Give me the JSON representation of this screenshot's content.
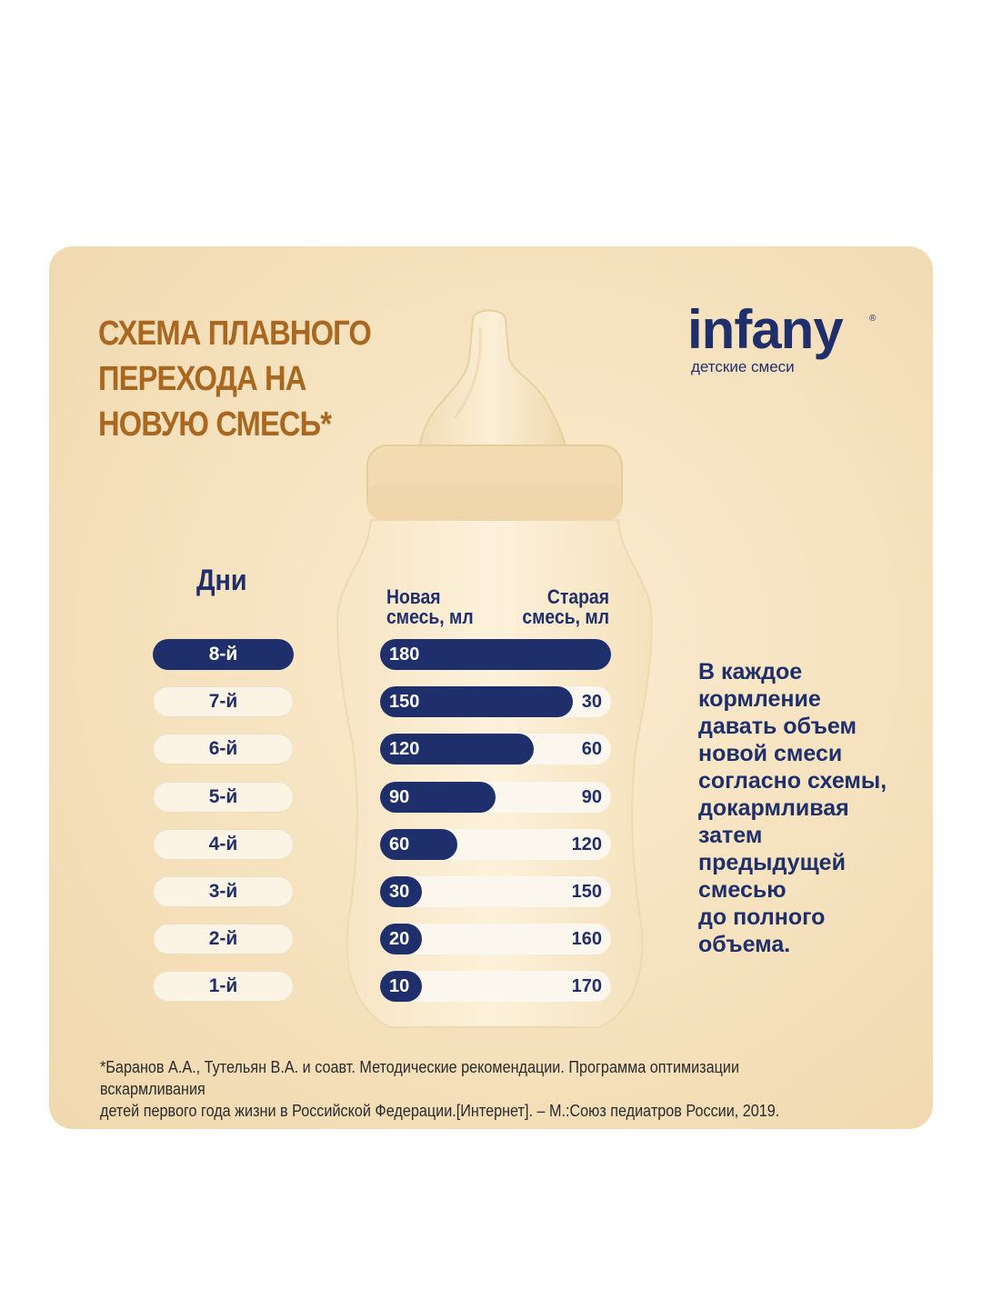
{
  "title": "СХЕМА ПЛАВНОГО\nПЕРЕХОДА НА\nНОВУЮ СМЕСЬ*",
  "brand": {
    "name": "infany",
    "registered": "®",
    "tagline": "детские смеси"
  },
  "days_title": "Дни",
  "columns": {
    "new": "Новая\nсмесь, мл",
    "old": "Старая\nсмесь, мл"
  },
  "advice": "В каждое\nкормление\nдавать объем\nновой смеси\nсогласно схемы,\nдокармливая\nзатем\nпредыдущей\nсмесью\nдо полного\nобъема.",
  "footnote": "*Баранов А.А., Тутельян В.А. и соавт. Методические рекомендации. Программа оптимизации вскармливания\n  детей первого года жизни в Российской Федерации.[Интернет]. – М.:Союз педиатров России, 2019.",
  "colors": {
    "navy": "#1e2f6b",
    "gold": "#a9671f",
    "cream": "#f6e3c0"
  },
  "chart_data": {
    "type": "bar",
    "orientation": "horizontal",
    "stacked": true,
    "total": 180,
    "categories": [
      "8-й",
      "7-й",
      "6-й",
      "5-й",
      "4-й",
      "3-й",
      "2-й",
      "1-й"
    ],
    "active_category": "8-й",
    "series": [
      {
        "name": "Новая смесь, мл",
        "values": [
          180,
          150,
          120,
          90,
          60,
          30,
          20,
          10
        ]
      },
      {
        "name": "Старая смесь, мл",
        "values": [
          0,
          30,
          60,
          90,
          120,
          150,
          160,
          170
        ]
      }
    ]
  }
}
